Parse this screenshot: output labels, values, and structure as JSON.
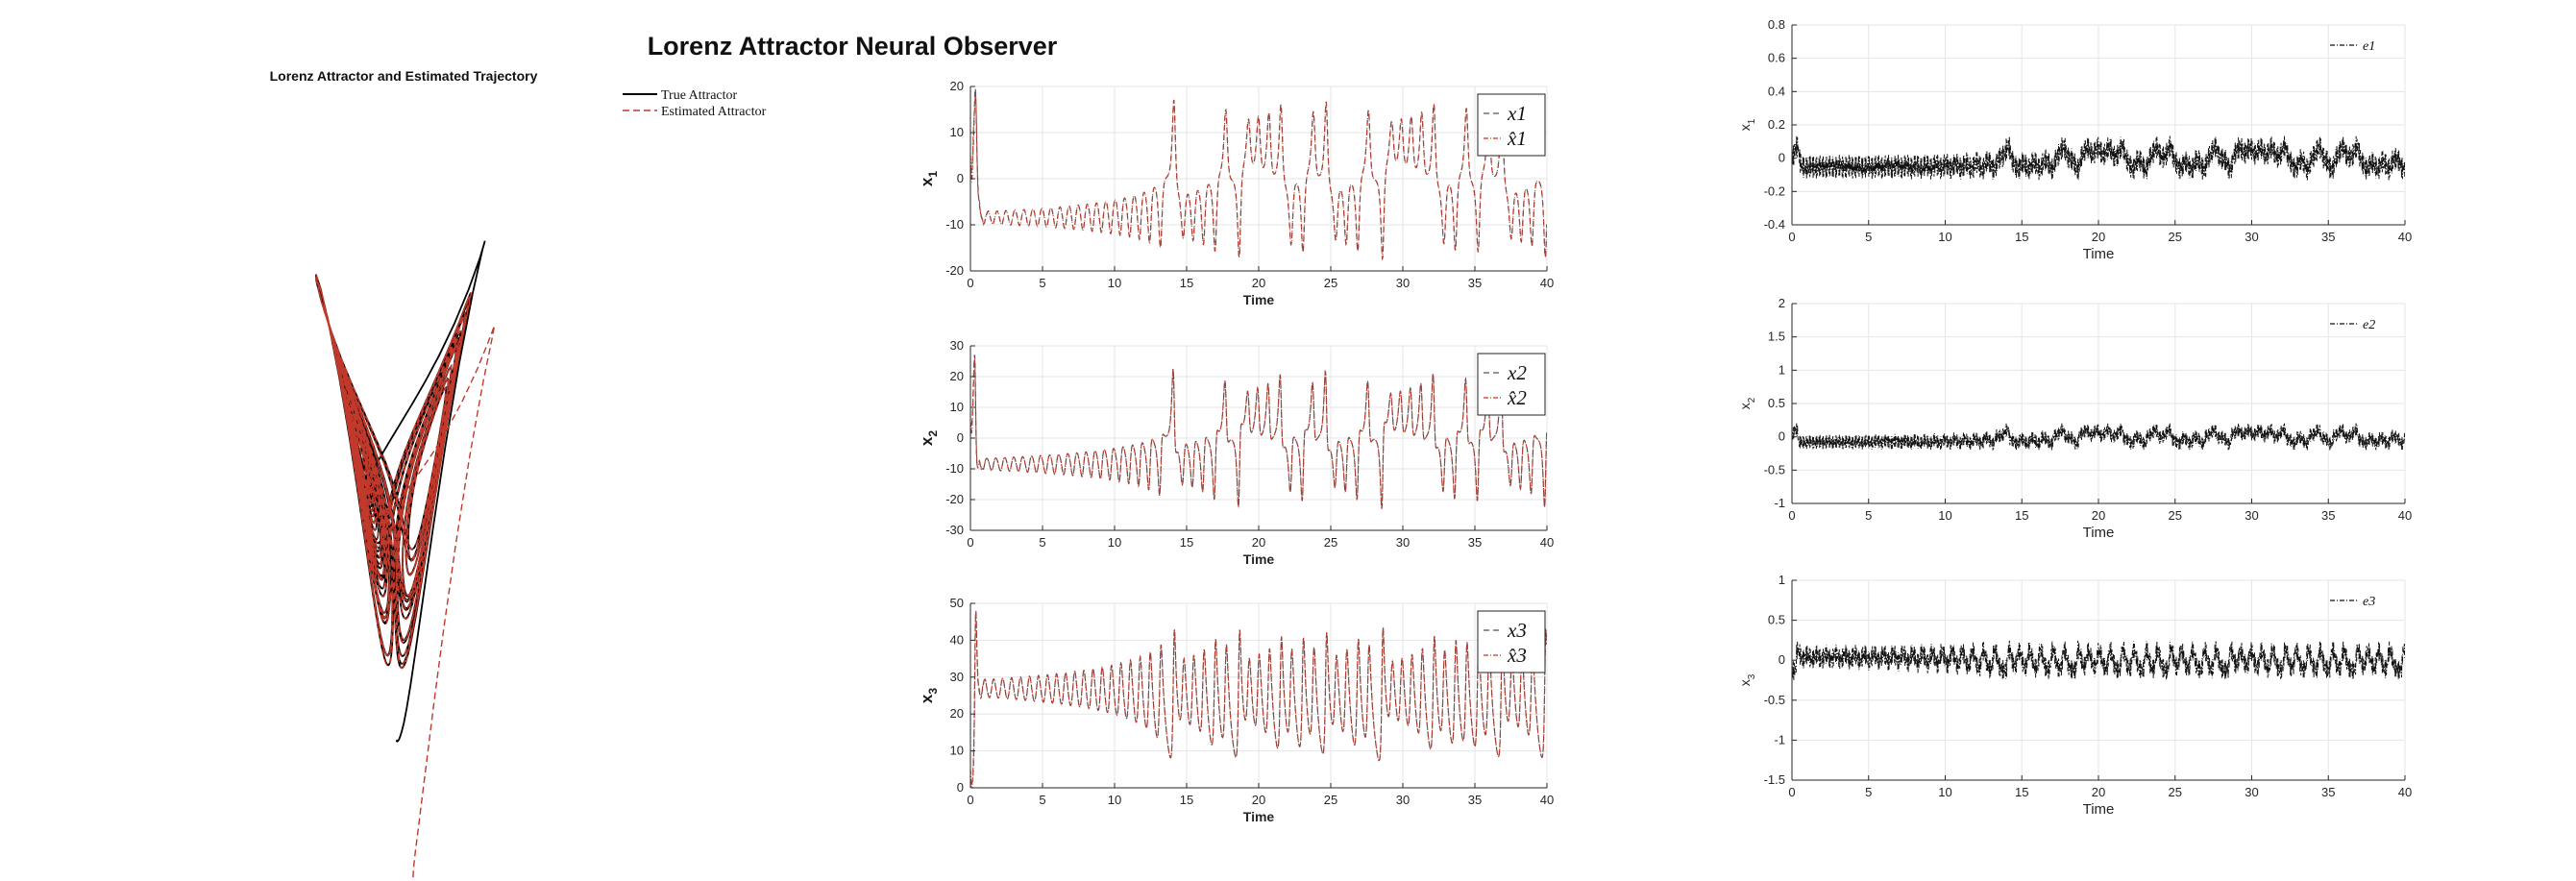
{
  "figure": {
    "title": "Lorenz Attractor Neural Observer",
    "subtitle": "Lorenz Attractor and Estimated Trajectory"
  },
  "legend3d": {
    "true_label": "True Attractor",
    "est_label": "Estimated Attractor"
  },
  "colors": {
    "true": "#000000",
    "est": "#c0392b",
    "grid": "#e6e6e6",
    "axis": "#262626"
  },
  "chart_data": [
    {
      "type": "line",
      "id": "attractor-3d",
      "title": "Lorenz Attractor and Estimated Trajectory",
      "series": [
        {
          "name": "True Attractor",
          "style": "solid",
          "color": "#000000"
        },
        {
          "name": "Estimated Attractor",
          "style": "dashed",
          "color": "#c0392b"
        }
      ],
      "legend_position": "top-right"
    },
    {
      "type": "line",
      "id": "state-x1",
      "xlabel": "Time",
      "ylabel": "x",
      "ylabel_sub": "1",
      "xlim": [
        0,
        40
      ],
      "ylim": [
        -20,
        20
      ],
      "xticks": [
        "0",
        "5",
        "10",
        "15",
        "20",
        "25",
        "30",
        "35",
        "40"
      ],
      "yticks": [
        "-20",
        "-10",
        "0",
        "10",
        "20"
      ],
      "legend": [
        "x1",
        "x̂1"
      ],
      "legend_sub": "1",
      "legend_position": "top-right",
      "grid": true
    },
    {
      "type": "line",
      "id": "state-x2",
      "xlabel": "Time",
      "ylabel": "x",
      "ylabel_sub": "2",
      "xlim": [
        0,
        40
      ],
      "ylim": [
        -30,
        30
      ],
      "xticks": [
        "0",
        "5",
        "10",
        "15",
        "20",
        "25",
        "30",
        "35",
        "40"
      ],
      "yticks": [
        "-30",
        "-20",
        "-10",
        "0",
        "10",
        "20",
        "30"
      ],
      "legend": [
        "x2",
        "x̂2"
      ],
      "legend_sub": "2",
      "legend_position": "top-right",
      "grid": true
    },
    {
      "type": "line",
      "id": "state-x3",
      "xlabel": "Time",
      "ylabel": "x",
      "ylabel_sub": "3",
      "xlim": [
        0,
        40
      ],
      "ylim": [
        0,
        50
      ],
      "xticks": [
        "0",
        "5",
        "10",
        "15",
        "20",
        "25",
        "30",
        "35",
        "40"
      ],
      "yticks": [
        "0",
        "10",
        "20",
        "30",
        "40",
        "50"
      ],
      "legend": [
        "x3",
        "x̂3"
      ],
      "legend_sub": "3",
      "legend_position": "top-right",
      "grid": true
    },
    {
      "type": "line",
      "id": "error-e1",
      "xlabel": "Time",
      "ylabel": "x",
      "ylabel_sub": "1",
      "xlim": [
        0,
        40
      ],
      "ylim": [
        -0.4,
        0.8
      ],
      "xticks": [
        "0",
        "5",
        "10",
        "15",
        "20",
        "25",
        "30",
        "35",
        "40"
      ],
      "yticks": [
        "-0.4",
        "-0.2",
        "0",
        "0.2",
        "0.4",
        "0.6",
        "0.8"
      ],
      "legend": [
        "e1"
      ],
      "legend_sub": "1",
      "legend_position": "top-right",
      "grid": true
    },
    {
      "type": "line",
      "id": "error-e2",
      "xlabel": "Time",
      "ylabel": "x",
      "ylabel_sub": "2",
      "xlim": [
        0,
        40
      ],
      "ylim": [
        -1,
        2
      ],
      "xticks": [
        "0",
        "5",
        "10",
        "15",
        "20",
        "25",
        "30",
        "35",
        "40"
      ],
      "yticks": [
        "-1",
        "-0.5",
        "0",
        "0.5",
        "1",
        "1.5",
        "2"
      ],
      "legend": [
        "e2"
      ],
      "legend_sub": "2",
      "legend_position": "top-right",
      "grid": true
    },
    {
      "type": "line",
      "id": "error-e3",
      "xlabel": "Time",
      "ylabel": "x",
      "ylabel_sub": "3",
      "xlim": [
        0,
        40
      ],
      "ylim": [
        -1.5,
        1
      ],
      "xticks": [
        "0",
        "5",
        "10",
        "15",
        "20",
        "25",
        "30",
        "35",
        "40"
      ],
      "yticks": [
        "-1.5",
        "-1",
        "-0.5",
        "0",
        "0.5",
        "1"
      ],
      "legend": [
        "e3"
      ],
      "legend_sub": "3",
      "legend_position": "top-right",
      "grid": true
    }
  ]
}
